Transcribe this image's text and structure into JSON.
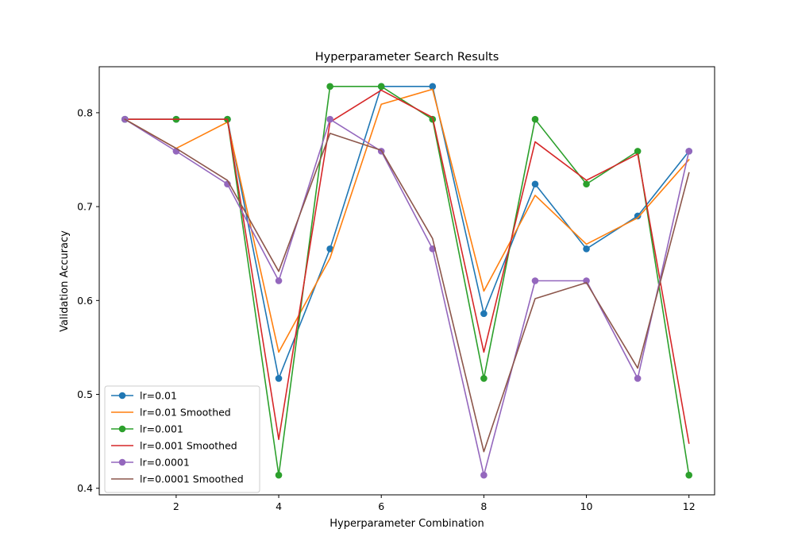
{
  "chart_data": {
    "type": "line",
    "title": "Hyperparameter Search Results",
    "xlabel": "Hyperparameter Combination",
    "ylabel": "Validation Accuracy",
    "xlim": [
      0.5,
      12.5
    ],
    "ylim": [
      0.393,
      0.849
    ],
    "xticks": [
      2,
      4,
      6,
      8,
      10,
      12
    ],
    "yticks": [
      0.4,
      0.5,
      0.6,
      0.7,
      0.8
    ],
    "ytick_labels": [
      "0.4",
      "0.5",
      "0.6",
      "0.7",
      "0.8"
    ],
    "grid": false,
    "legend": "lower-left",
    "x": [
      1,
      2,
      3,
      4,
      5,
      6,
      7,
      8,
      9,
      10,
      11,
      12
    ],
    "series": [
      {
        "name": "lr=0.01",
        "color": "#1f77b4",
        "marker": true,
        "values": [
          0.793,
          0.793,
          0.793,
          0.517,
          0.655,
          0.828,
          0.828,
          0.586,
          0.724,
          0.655,
          0.69,
          0.759
        ]
      },
      {
        "name": "lr=0.01 Smoothed",
        "color": "#ff7f0e",
        "marker": false,
        "values": [
          0.793,
          0.762,
          0.79,
          0.545,
          0.645,
          0.809,
          0.825,
          0.61,
          0.712,
          0.66,
          0.688,
          0.75
        ]
      },
      {
        "name": "lr=0.001",
        "color": "#2ca02c",
        "marker": true,
        "values": [
          0.793,
          0.793,
          0.793,
          0.414,
          0.828,
          0.828,
          0.793,
          0.517,
          0.793,
          0.724,
          0.759,
          0.414
        ]
      },
      {
        "name": "lr=0.001 Smoothed",
        "color": "#d62728",
        "marker": false,
        "values": [
          0.793,
          0.793,
          0.793,
          0.452,
          0.79,
          0.824,
          0.795,
          0.545,
          0.769,
          0.728,
          0.756,
          0.448
        ]
      },
      {
        "name": "lr=0.0001",
        "color": "#9467bd",
        "marker": true,
        "values": [
          0.793,
          0.759,
          0.724,
          0.621,
          0.793,
          0.759,
          0.655,
          0.414,
          0.621,
          0.621,
          0.517,
          0.759
        ]
      },
      {
        "name": "lr=0.0001 Smoothed",
        "color": "#8c564b",
        "marker": false,
        "values": [
          0.793,
          0.762,
          0.728,
          0.631,
          0.778,
          0.76,
          0.666,
          0.439,
          0.602,
          0.619,
          0.528,
          0.736
        ]
      }
    ]
  }
}
